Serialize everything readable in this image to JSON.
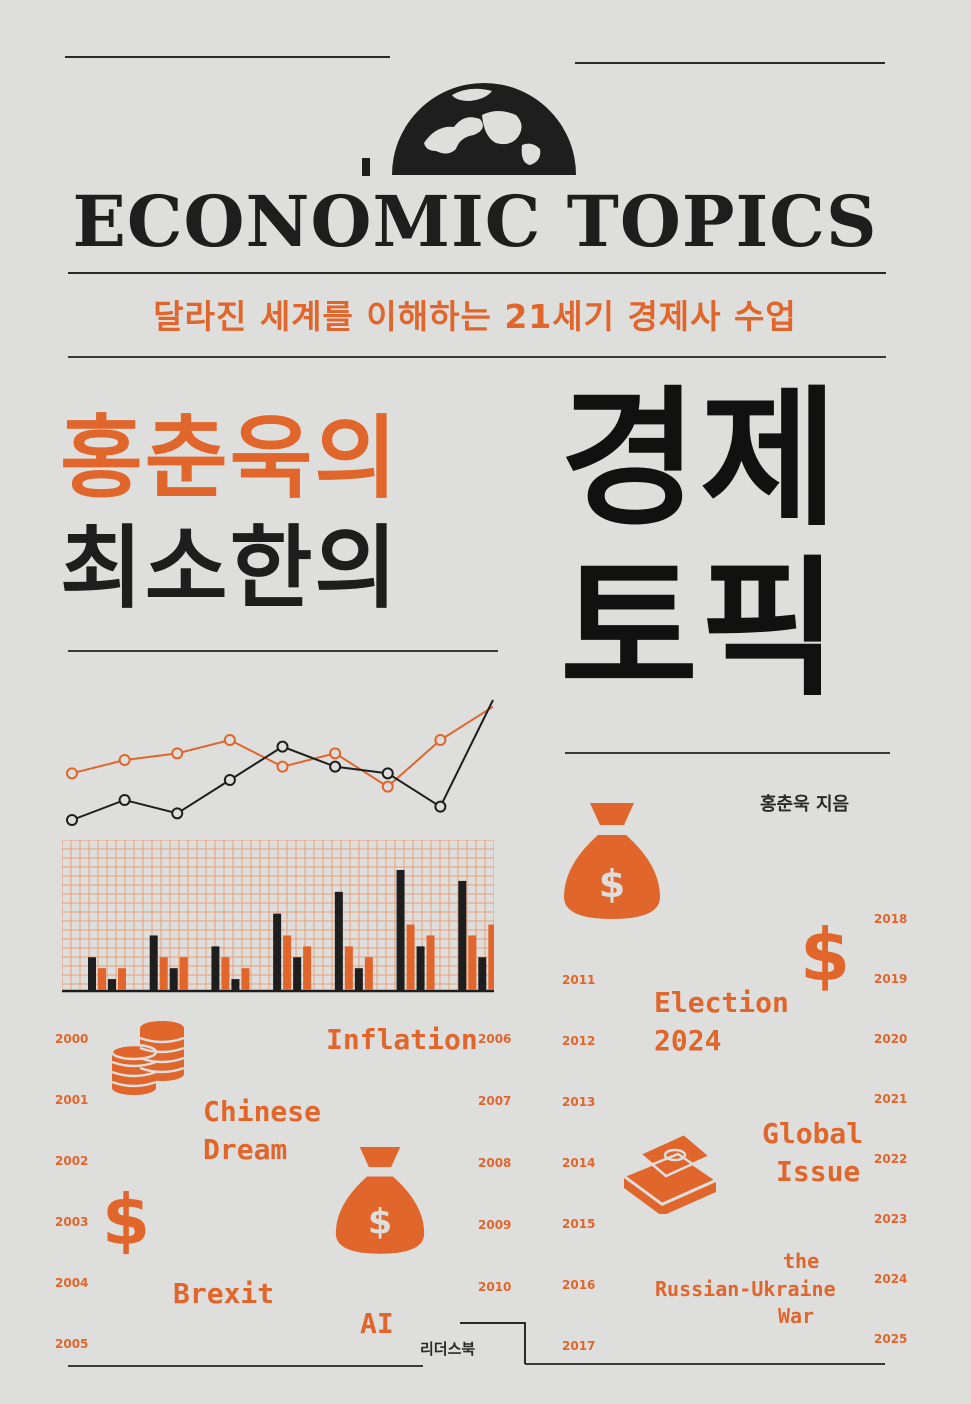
{
  "cover": {
    "title_en": "ECONOMIC TOPICS",
    "subtitle": "달라진 세계를 이해하는 21세기 경제사 수업",
    "title_line1": "홍춘욱의",
    "title_line2": "최소한의",
    "title_big1": "경제",
    "title_big2": "토픽",
    "author": "홍춘욱 지음",
    "publisher": "리더스북"
  },
  "keywords": {
    "inflation": "Inflation",
    "chinese": "Chinese",
    "dream": "Dream",
    "brexit": "Brexit",
    "ai": "AI",
    "election": "Election",
    "election_year": "2024",
    "global": "Global",
    "issue": "Issue",
    "the": "the",
    "russian_ukraine": "Russian-Ukraine",
    "war": "War"
  },
  "years": {
    "col1": [
      "2000",
      "2001",
      "2002",
      "2003",
      "2004",
      "2005"
    ],
    "col2": [
      "2006",
      "2007",
      "2008",
      "2009",
      "2010"
    ],
    "col3": [
      "2011",
      "2012",
      "2013",
      "2014",
      "2015",
      "2016",
      "2017"
    ],
    "col4": [
      "2018",
      "2019",
      "2020",
      "2021",
      "2022",
      "2023",
      "2024",
      "2025"
    ]
  },
  "chart_data": {
    "line_series": [
      {
        "color": "#e0662c",
        "values": [
          10,
          12,
          13,
          15,
          11,
          13,
          8,
          15,
          20
        ]
      },
      {
        "color": "#1e1e1e",
        "values": [
          3,
          6,
          4,
          9,
          14,
          11,
          10,
          5,
          21
        ]
      }
    ],
    "bar_series": [
      {
        "color": "#1e1e1e",
        "values": [
          3,
          5,
          4,
          7,
          9,
          11,
          10
        ]
      },
      {
        "color": "#e0662c",
        "values": [
          2,
          3,
          3,
          5,
          4,
          6,
          5
        ]
      },
      {
        "color": "#1e1e1e",
        "values": [
          1,
          2,
          1,
          3,
          2,
          4,
          3
        ]
      },
      {
        "color": "#e0662c",
        "values": [
          2,
          3,
          2,
          4,
          3,
          5,
          6
        ]
      }
    ],
    "colors": {
      "accent": "#e0662c",
      "ink": "#1e1e1e",
      "grid": "#e8a07a"
    }
  },
  "icons": [
    "globe-icon",
    "money-bag-icon",
    "dollar-sign-icon",
    "coin-stack-icon",
    "cash-stack-icon"
  ]
}
